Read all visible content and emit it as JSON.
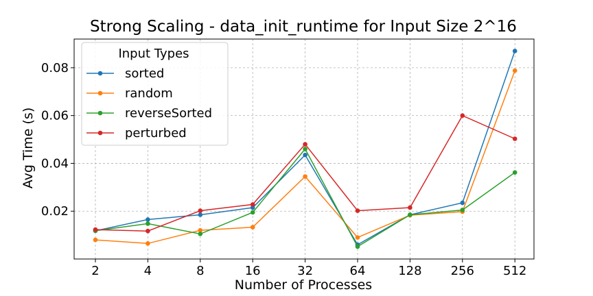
{
  "chart_data": {
    "type": "line",
    "title": "Strong Scaling - data_init_runtime for Input Size 2^16",
    "xlabel": "Number of Processes",
    "ylabel": "Avg Time (s)",
    "x_scale": "log2",
    "categories": [
      "2",
      "4",
      "8",
      "16",
      "32",
      "64",
      "128",
      "256",
      "512"
    ],
    "x": [
      2,
      4,
      8,
      16,
      32,
      64,
      128,
      256,
      512
    ],
    "ylim": [
      0.0,
      0.092
    ],
    "yticks": [
      0.02,
      0.04,
      0.06,
      0.08
    ],
    "ytick_labels": [
      "0.02",
      "0.04",
      "0.06",
      "0.08"
    ],
    "grid": true,
    "legend": {
      "title": "Input Types",
      "placement": "top-left"
    },
    "series": [
      {
        "name": "sorted",
        "color": "#1f77b4",
        "values": [
          0.0118,
          0.0165,
          0.0185,
          0.0215,
          0.0435,
          0.006,
          0.0185,
          0.0235,
          0.087
        ]
      },
      {
        "name": "random",
        "color": "#ff7f0e",
        "values": [
          0.008,
          0.0065,
          0.012,
          0.0133,
          0.0345,
          0.009,
          0.0183,
          0.0198,
          0.0788
        ]
      },
      {
        "name": "reverseSorted",
        "color": "#2ca02c",
        "values": [
          0.0118,
          0.0148,
          0.0105,
          0.0195,
          0.046,
          0.0052,
          0.0185,
          0.0205,
          0.0362
        ]
      },
      {
        "name": "perturbed",
        "color": "#d62728",
        "values": [
          0.0123,
          0.0117,
          0.0202,
          0.0228,
          0.048,
          0.0202,
          0.0215,
          0.06,
          0.0503
        ]
      }
    ]
  }
}
